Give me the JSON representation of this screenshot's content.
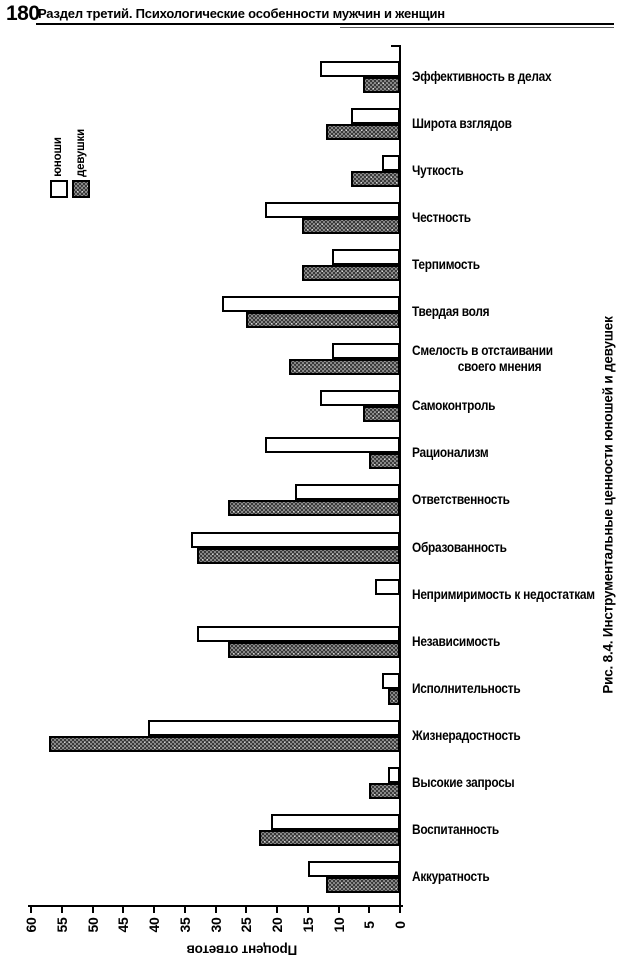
{
  "page": {
    "number": "180",
    "header": "Раздел третий. Психологические особенности мужчин и женщин"
  },
  "chart_data": {
    "type": "bar",
    "orientation": "rotated: bars extend leftward from a right-side category axis; value axis along the bottom with 0 at right",
    "title": "Рис. 8.4. Инструментальные ценности юношей и девушек",
    "value_axis_label": "Процент ответов",
    "value_range": [
      0,
      60
    ],
    "ticks": [
      60,
      55,
      50,
      45,
      40,
      35,
      30,
      25,
      20,
      15,
      10,
      5,
      0
    ],
    "grid": false,
    "legend_position": "upper-left, swatch labels rotated 90°",
    "legend": [
      {
        "name": "юноши",
        "swatch": "white-outlined"
      },
      {
        "name": "девушки",
        "swatch": "stippled-gray"
      }
    ],
    "categories": [
      "Эффективность в делах",
      "Широта взглядов",
      "Чуткость",
      "Честность",
      "Терпимость",
      "Твердая воля",
      "Смелость в отстаивании\nсвоего мнения",
      "Самоконтроль",
      "Рационализм",
      "Ответственность",
      "Образованность",
      "Непримиримость к недостаткам",
      "Независимость",
      "Исполнительность",
      "Жизнерадостность",
      "Высокие запросы",
      "Воспитанность",
      "Аккуратность"
    ],
    "series": [
      {
        "name": "юноши",
        "values": [
          13,
          8,
          3,
          22,
          11,
          29,
          11,
          13,
          22,
          17,
          34,
          4,
          33,
          3,
          41,
          2,
          21,
          15
        ]
      },
      {
        "name": "девушки",
        "values": [
          6,
          12,
          8,
          16,
          16,
          25,
          18,
          6,
          5,
          28,
          33,
          0,
          28,
          2,
          57,
          5,
          23,
          12
        ]
      }
    ]
  },
  "colors": {
    "ink": "#000000",
    "bar_open_fill": "#ffffff",
    "bar_stipple_base": "#868686",
    "background": "#ffffff"
  }
}
